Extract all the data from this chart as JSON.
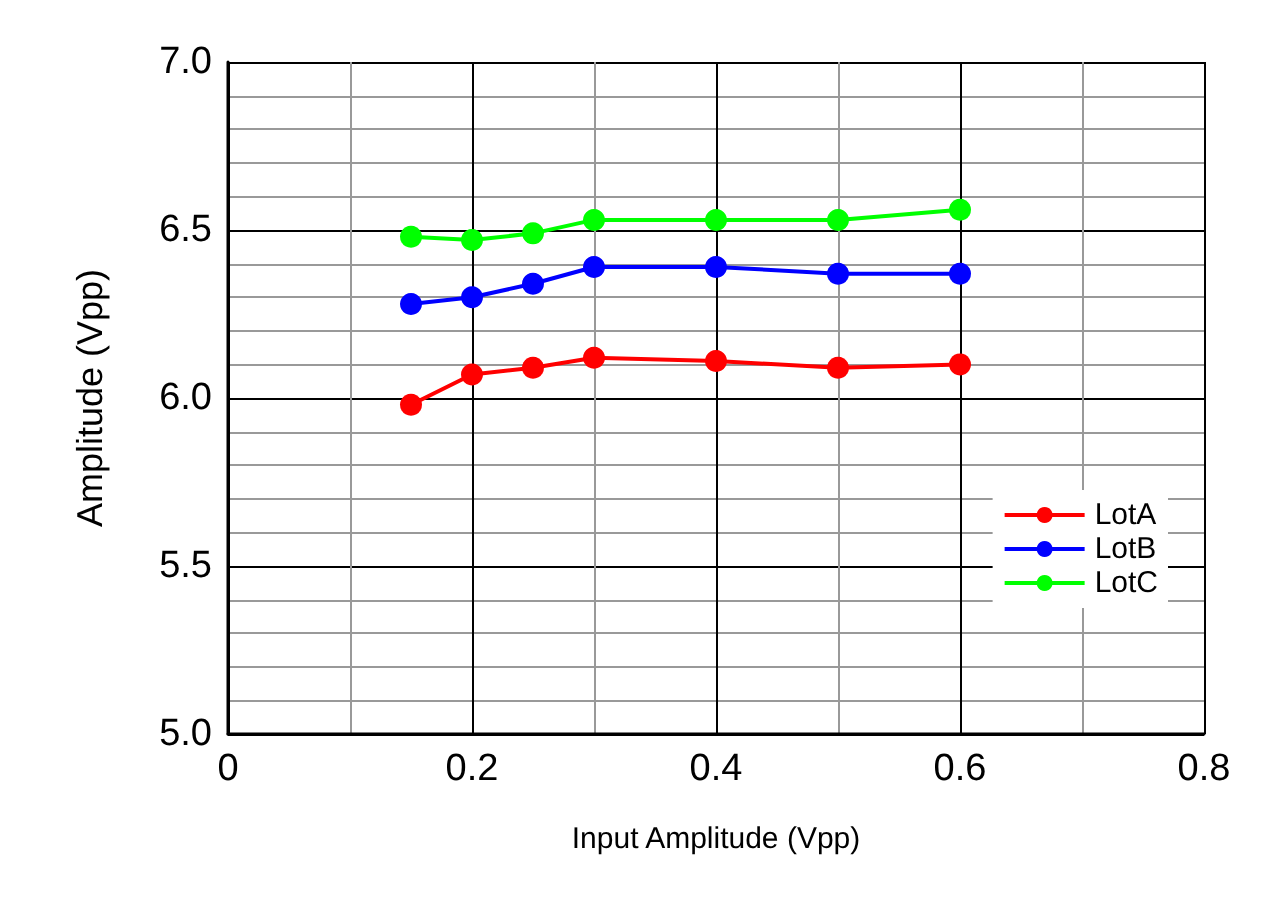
{
  "chart_data": {
    "type": "line",
    "xlabel": "Input Amplitude (Vpp)",
    "ylabel": "Amplitude (Vpp)",
    "x": [
      0.15,
      0.2,
      0.25,
      0.3,
      0.4,
      0.5,
      0.6
    ],
    "series": [
      {
        "name": "LotA",
        "color": "#ff0000",
        "values": [
          5.98,
          6.07,
          6.09,
          6.12,
          6.11,
          6.09,
          6.1
        ]
      },
      {
        "name": "LotB",
        "color": "#0000ff",
        "values": [
          6.28,
          6.3,
          6.34,
          6.39,
          6.39,
          6.37,
          6.37
        ]
      },
      {
        "name": "LotC",
        "color": "#00ff00",
        "values": [
          6.48,
          6.47,
          6.49,
          6.53,
          6.53,
          6.53,
          6.56
        ]
      }
    ],
    "xlim": [
      0,
      0.8
    ],
    "xticks": [
      0,
      0.2,
      0.4,
      0.6,
      0.8
    ],
    "ylim": [
      5,
      7
    ],
    "yticks": [
      {
        "value": 5,
        "label": "5.0"
      },
      {
        "value": 5.5,
        "label": "5.5"
      },
      {
        "value": 6,
        "label": "6.0"
      },
      {
        "value": 6.5,
        "label": "6.5"
      },
      {
        "value": 7,
        "label": "7.0"
      }
    ],
    "grid": true,
    "legend": "bottom right",
    "marker": "circle",
    "line_style": "solid"
  }
}
